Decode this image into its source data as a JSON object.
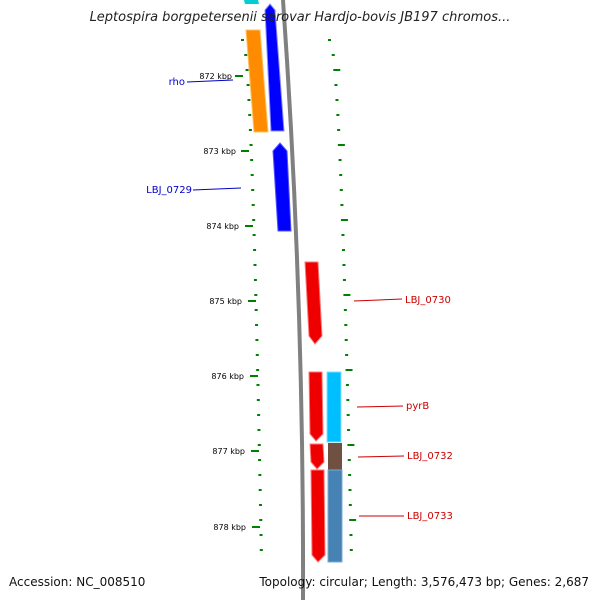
{
  "title": "Leptospira borgpetersenii serovar Hardjo-bovis JB197 chromos...",
  "accession_text": "Accession: NC_008510",
  "topology_text": "Topology: circular; Length: 3,576,473 bp; Genes: 2,687",
  "scale_labels": [
    "872 kbp",
    "873 kbp",
    "874 kbp",
    "875 kbp",
    "876 kbp",
    "877 kbp",
    "878 kbp"
  ],
  "genes": [
    {
      "label": "rho",
      "strand": "minus",
      "track": "cds",
      "color": "#0000ff"
    },
    {
      "label": "LBJ_0729",
      "strand": "minus",
      "track": "cds",
      "color": "#0000ff"
    },
    {
      "label": "LBJ_0730",
      "strand": "plus",
      "track": "cds",
      "color": "#ee0000"
    },
    {
      "label": "pyrB",
      "strand": "plus",
      "track": "cds",
      "color": "#ee0000"
    },
    {
      "label": "LBJ_0732",
      "strand": "plus",
      "track": "cds",
      "color": "#ee0000"
    },
    {
      "label": "LBJ_0733",
      "strand": "plus",
      "track": "cds",
      "color": "#ee0000"
    }
  ],
  "feature_colors": {
    "minus_cds": "#0000ff",
    "plus_cds": "#ee0000",
    "minus_cog": "#ff8c00",
    "plus_cog_light": "#00bfff",
    "plus_cog_brown": "#705040",
    "plus_cog_steel": "#4682b4",
    "backbone": "#808080",
    "ticks": "#008000"
  }
}
